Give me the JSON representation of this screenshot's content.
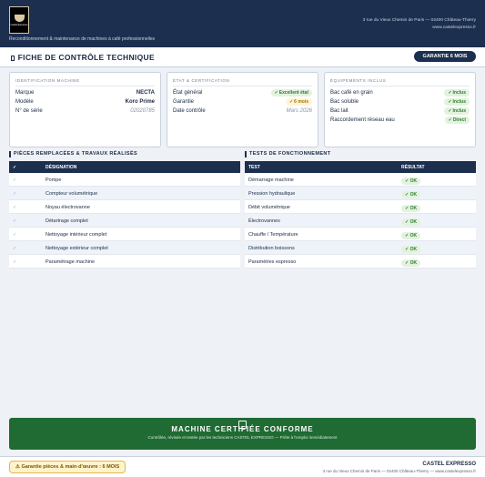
{
  "header": {
    "logo_text": "Castel Expresso",
    "tagline": "Reconditionnement & maintenance de machines à café professionnelles",
    "address": "3 rue du Vieux Chemin de Paris — 02400 Château-Thierry",
    "website": "www.castelexpresso.fr"
  },
  "titlebar": {
    "title": "FICHE DE CONTRÔLE TECHNIQUE",
    "badge": "GARANTIE 6 MOIS"
  },
  "identification": {
    "title": "IDENTIFICATION MACHINE",
    "rows": [
      {
        "k": "Marque",
        "v": "NECTA"
      },
      {
        "k": "Modèle",
        "v": "Koro Prime"
      },
      {
        "k": "N° de série",
        "v": "02020785"
      }
    ]
  },
  "etat": {
    "title": "ÉTAT & CERTIFICATION",
    "rows": [
      {
        "k": "État général",
        "v": "Excellent état",
        "check": "✓"
      },
      {
        "k": "Garantie",
        "v": "6 mois",
        "check": "✓"
      },
      {
        "k": "Date contrôle",
        "v": "Mars 2026"
      }
    ]
  },
  "equipements": {
    "title": "ÉQUIPEMENTS INCLUS",
    "rows": [
      {
        "k": "Bac café en grain",
        "v": "Inclus",
        "check": "✓"
      },
      {
        "k": "Bac soluble",
        "v": "Inclus",
        "check": "✓"
      },
      {
        "k": "Bac lait",
        "v": "Inclus",
        "check": "✓"
      },
      {
        "k": "Raccordement réseau eau",
        "v": "Direct",
        "check": "✓"
      }
    ]
  },
  "pieces": {
    "section_label": "PIÈCES REMPLACÉES & TRAVAUX RÉALISÉS",
    "head_icon": "✓",
    "head_label": "DÉSIGNATION",
    "row_icon": "✓",
    "rows": [
      "Pompe",
      "Compteur volumétrique",
      "Noyau électrovanne",
      "Détartrage complet",
      "Nettoyage intérieur complet",
      "Nettoyage extérieur complet",
      "Paramétrage machine"
    ]
  },
  "tests": {
    "section_label": "TESTS DE FONCTIONNEMENT",
    "head_test": "TEST",
    "head_result": "RÉSULTAT",
    "result_label": "✓ OK",
    "rows": [
      "Démarrage machine",
      "Pression hydraulique",
      "Débit volumétrique",
      "Électrovannes",
      "Chauffe / Température",
      "Distribution boissons",
      "Paramètres espresso"
    ]
  },
  "banner": {
    "title": "MACHINE CERTIFIÉE CONFORME",
    "subtitle": "Contrôlée, révisée et testée par les techniciens CASTEL EXPRESSO — Prête à l'emploi immédiatement"
  },
  "footer": {
    "warranty": "⚠ Garantie pièces & main-d'œuvre : 6 MOIS",
    "company": "CASTEL EXPRESSO",
    "address": "3 rue du Vieux Chemin de Paris — 02400 Château-Thierry — www.castelexpresso.fr"
  },
  "colors": {
    "navy": "#1c2f4f",
    "green": "#1f6b33",
    "ok_green": "#2e7d32",
    "amber": "#a57300"
  }
}
